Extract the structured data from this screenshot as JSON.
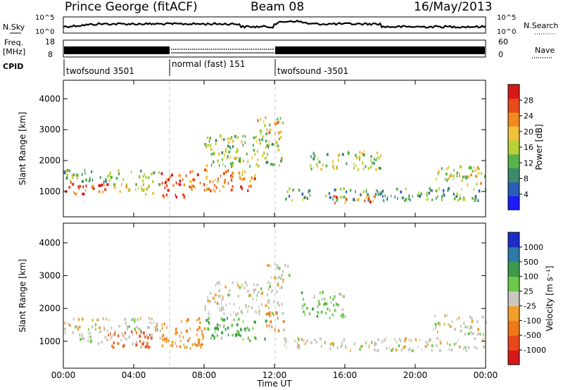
{
  "header": {
    "station": "Prince George (fitACF)",
    "beam": "Beam 08",
    "date": "16/May/2013"
  },
  "top_panels": {
    "nsky_label": "N.Sky",
    "nsky_ticks": [
      "10^5",
      "10^0"
    ],
    "nsearch_label": "N.Search",
    "freq_label_1": "Freq.",
    "freq_label_2": "[MHz]",
    "freq_ticks": [
      "18",
      "8"
    ],
    "nave_label": "Nave",
    "nave_ticks": [
      "60",
      "0"
    ],
    "cpid_label": "CPID",
    "cpid_segments": [
      "twofsound 3501",
      "normal (fast) 151",
      "twofsound -3501"
    ]
  },
  "axes": {
    "y_label": "Slant Range [km]",
    "y_ticks": [
      "4000",
      "3000",
      "2000",
      "1000"
    ],
    "x_label": "Time UT",
    "x_ticks": [
      "00:00",
      "04:00",
      "08:00",
      "12:00",
      "16:00",
      "20:00",
      "00:00"
    ]
  },
  "colorbars": {
    "power": {
      "label": "Power [dB]",
      "ticks": [
        "28",
        "24",
        "20",
        "16",
        "12",
        "8",
        "4"
      ],
      "colors": [
        "#1c1cff",
        "#2c5fb8",
        "#3d8a6a",
        "#58b44a",
        "#b8d23a",
        "#f0c23a",
        "#f08a1c",
        "#e84a18",
        "#d81818"
      ]
    },
    "velocity": {
      "label": "Velocity [m s⁻¹]",
      "ticks": [
        "1000",
        "500",
        "100",
        "25",
        "-25",
        "-100",
        "-500",
        "-1000"
      ],
      "colors": [
        "#1c2cc8",
        "#2c7aa8",
        "#3c9a4a",
        "#6cc84a",
        "#c8c8c0",
        "#f0a028",
        "#f07818",
        "#e84818",
        "#d81818"
      ]
    }
  },
  "chart_data": [
    {
      "type": "line",
      "title": "N.Sky",
      "x_range_hours": [
        0,
        24
      ],
      "y_scale": "log",
      "y_range": [
        1,
        100000
      ]
    },
    {
      "type": "line",
      "title": "Freq. [MHz] / Nave",
      "x_range_hours": [
        0,
        24
      ],
      "ylim_freq": [
        8,
        18
      ],
      "ylim_nave": [
        0,
        60
      ]
    },
    {
      "type": "heatmap",
      "title": "Power [dB]",
      "xlabel": "Time UT",
      "ylabel": "Slant Range [km]",
      "xlim_hours": [
        0,
        24
      ],
      "ylim_km": [
        180,
        4600
      ],
      "colorbar_range": [
        0,
        30
      ],
      "echo_regions": [
        {
          "t0": 0.0,
          "t1": 2.5,
          "r0": 900,
          "r1": 1300,
          "level": 26
        },
        {
          "t0": 0.0,
          "t1": 5.5,
          "r0": 1300,
          "r1": 1700,
          "level": 12
        },
        {
          "t0": 2.5,
          "t1": 5.5,
          "r0": 900,
          "r1": 1250,
          "level": 16
        },
        {
          "t0": 5.5,
          "t1": 7.0,
          "r0": 800,
          "r1": 1600,
          "level": 28
        },
        {
          "t0": 7.0,
          "t1": 11.0,
          "r0": 1000,
          "r1": 1700,
          "level": 22
        },
        {
          "t0": 8.0,
          "t1": 12.5,
          "r0": 1800,
          "r1": 2800,
          "level": 14
        },
        {
          "t0": 11.0,
          "t1": 12.5,
          "r0": 2800,
          "r1": 3400,
          "level": 18
        },
        {
          "t0": 12.5,
          "t1": 24.0,
          "r0": 700,
          "r1": 1100,
          "level": 10
        },
        {
          "t0": 14.0,
          "t1": 18.0,
          "r0": 1700,
          "r1": 2300,
          "level": 14
        },
        {
          "t0": 15.0,
          "t1": 18.0,
          "r0": 600,
          "r1": 850,
          "level": 22
        },
        {
          "t0": 21.0,
          "t1": 24.0,
          "r0": 1200,
          "r1": 1800,
          "level": 16
        }
      ]
    },
    {
      "type": "heatmap",
      "title": "Velocity [m s^-1]",
      "xlabel": "Time UT",
      "ylabel": "Slant Range [km]",
      "xlim_hours": [
        0,
        24
      ],
      "ylim_km": [
        180,
        4600
      ],
      "colorbar_range": [
        -1000,
        1000
      ],
      "echo_regions": [
        {
          "t0": 0.0,
          "t1": 5.5,
          "r0": 900,
          "r1": 1700,
          "level": 0
        },
        {
          "t0": 2.5,
          "t1": 5.0,
          "r0": 800,
          "r1": 1300,
          "level": -600
        },
        {
          "t0": 5.5,
          "t1": 8.0,
          "r0": 700,
          "r1": 1700,
          "level": -300
        },
        {
          "t0": 8.0,
          "t1": 11.5,
          "r0": 1000,
          "r1": 1700,
          "level": 300
        },
        {
          "t0": 8.0,
          "t1": 12.5,
          "r0": 1800,
          "r1": 2800,
          "level": 0
        },
        {
          "t0": 11.5,
          "t1": 12.5,
          "r0": 1300,
          "r1": 1900,
          "level": -400
        },
        {
          "t0": 11.5,
          "t1": 12.8,
          "r0": 2800,
          "r1": 3400,
          "level": 0
        },
        {
          "t0": 12.5,
          "t1": 24.0,
          "r0": 700,
          "r1": 1100,
          "level": 0
        },
        {
          "t0": 13.5,
          "t1": 16.0,
          "r0": 1700,
          "r1": 2500,
          "level": 200
        },
        {
          "t0": 21.0,
          "t1": 24.0,
          "r0": 1200,
          "r1": 1800,
          "level": 0
        }
      ]
    }
  ]
}
